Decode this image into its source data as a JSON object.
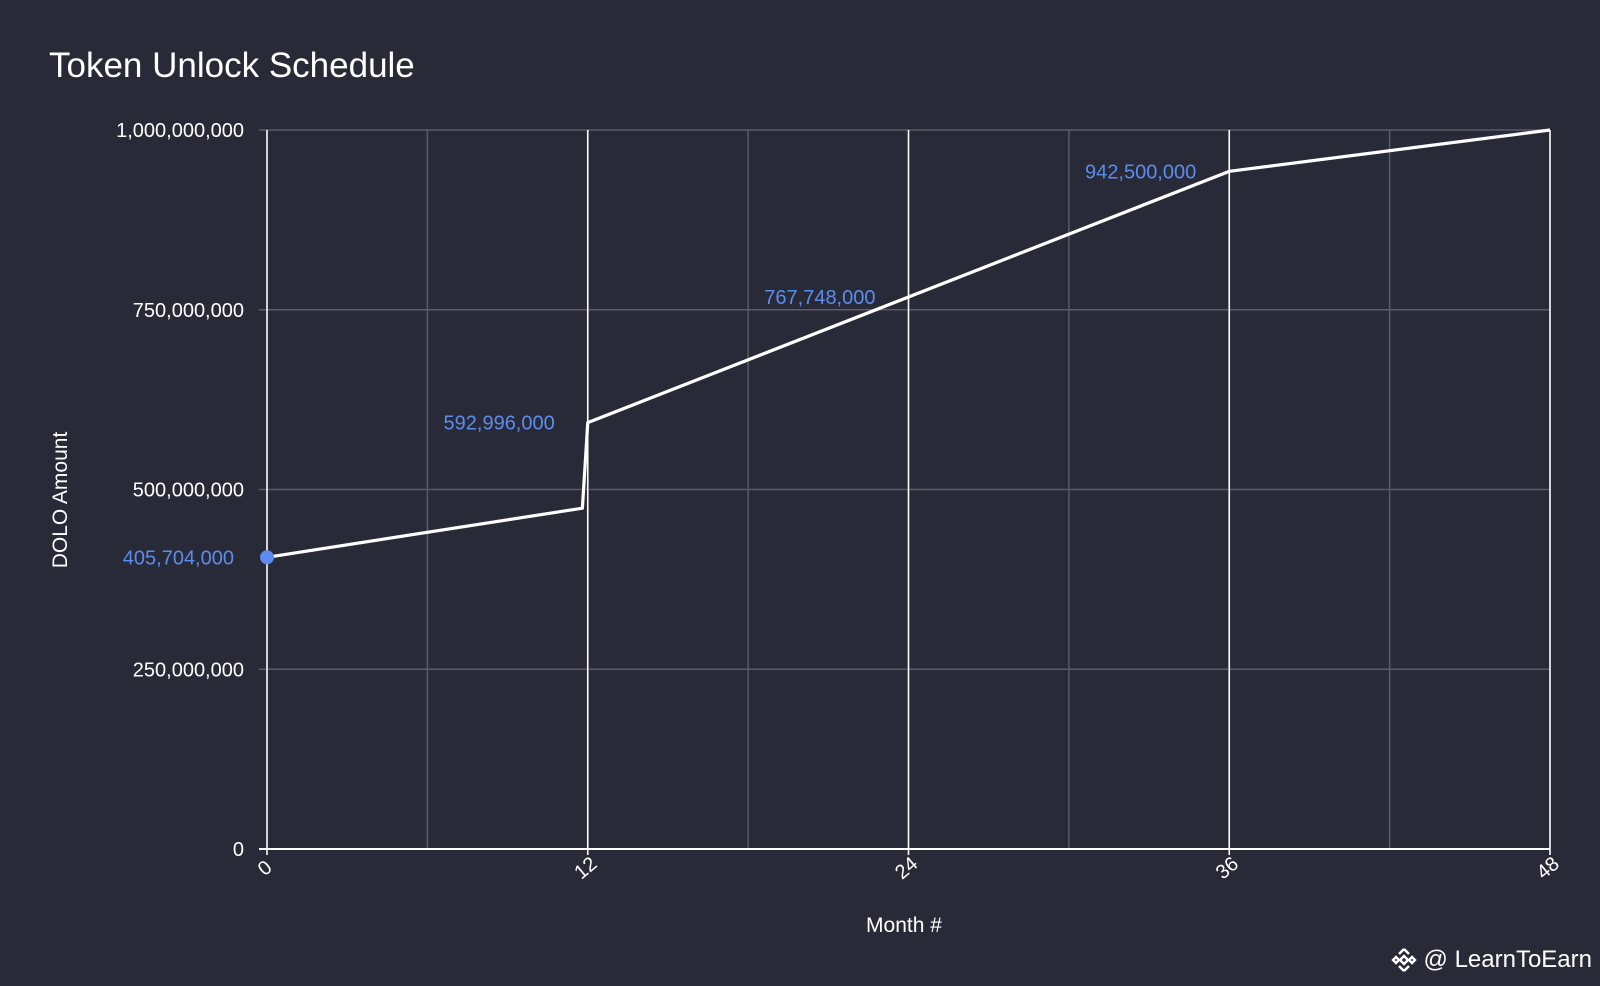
{
  "chart_data": {
    "type": "line",
    "title": "Token Unlock Schedule",
    "xlabel": "Month #",
    "ylabel": "DOLO Amount",
    "xlim": [
      0,
      48
    ],
    "ylim": [
      0,
      1000000000
    ],
    "x_ticks": [
      0,
      12,
      24,
      36,
      48
    ],
    "x_tick_labels": [
      "0",
      "12",
      "24",
      "36",
      "48"
    ],
    "x_minor_gridlines": [
      6,
      18,
      30,
      42
    ],
    "y_ticks": [
      0,
      250000000,
      500000000,
      750000000,
      1000000000
    ],
    "y_tick_labels": [
      "0",
      "250,000,000",
      "500,000,000",
      "750,000,000",
      "1,000,000,000"
    ],
    "grid": true,
    "series": [
      {
        "x": [
          0,
          11.8,
          12,
          24,
          36,
          48
        ],
        "y": [
          405704000,
          474000000,
          592996000,
          767748000,
          942500000,
          1000000000
        ],
        "color": "#ffffff"
      }
    ],
    "data_labels": [
      {
        "x": 0,
        "y": 405704000,
        "text": "405,704,000",
        "marker": true
      },
      {
        "x": 12,
        "y": 592996000,
        "text": "592,996,000"
      },
      {
        "x": 24,
        "y": 767748000,
        "text": "767,748,000"
      },
      {
        "x": 36,
        "y": 942500000,
        "text": "942,500,000"
      }
    ],
    "colors": {
      "background": "#292a37",
      "line": "#ffffff",
      "label": "#5b8def",
      "grid_major": "#5a5b66",
      "grid_vertical": "#ffffff"
    }
  },
  "watermark": {
    "text": "@ LearnToEarn",
    "icon": "binance-logo-icon"
  }
}
